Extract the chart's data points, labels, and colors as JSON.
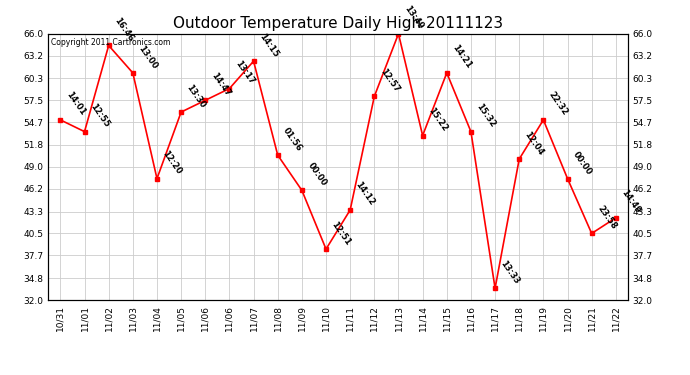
{
  "title": "Outdoor Temperature Daily High 20111123",
  "copyright_text": "Copyright 2011 Cartronics.com",
  "x_tick_labels": [
    "10/31",
    "11/01",
    "11/02",
    "11/03",
    "11/04",
    "11/05",
    "11/06",
    "11/06",
    "11/07",
    "11/08",
    "11/09",
    "11/10",
    "11/11",
    "11/12",
    "11/13",
    "11/14",
    "11/15",
    "11/16",
    "11/17",
    "11/18",
    "11/19",
    "11/20",
    "11/21",
    "11/22"
  ],
  "y_values": [
    55.0,
    53.5,
    64.5,
    61.0,
    47.5,
    56.0,
    57.5,
    59.0,
    62.5,
    50.5,
    46.0,
    38.5,
    43.5,
    58.0,
    66.0,
    53.0,
    61.0,
    53.5,
    33.5,
    50.0,
    55.0,
    47.5,
    40.5,
    42.5
  ],
  "point_labels": [
    "14:01",
    "12:55",
    "16:46",
    "13:00",
    "12:20",
    "13:30",
    "14:47",
    "13:17",
    "14:15",
    "01:56",
    "00:00",
    "12:51",
    "14:12",
    "12:57",
    "13:49",
    "15:22",
    "14:21",
    "15:32",
    "13:33",
    "12:04",
    "22:32",
    "00:00",
    "23:58",
    "14:49"
  ],
  "ylim": [
    32.0,
    66.0
  ],
  "yticks": [
    32.0,
    34.8,
    37.7,
    40.5,
    43.3,
    46.2,
    49.0,
    51.8,
    54.7,
    57.5,
    60.3,
    63.2,
    66.0
  ],
  "line_color": "red",
  "marker_color": "red",
  "marker_size": 3,
  "bg_color": "white",
  "grid_color": "#cccccc",
  "title_fontsize": 11,
  "tick_fontsize": 6.5,
  "annotation_fontsize": 6,
  "annotation_rotation": -55
}
